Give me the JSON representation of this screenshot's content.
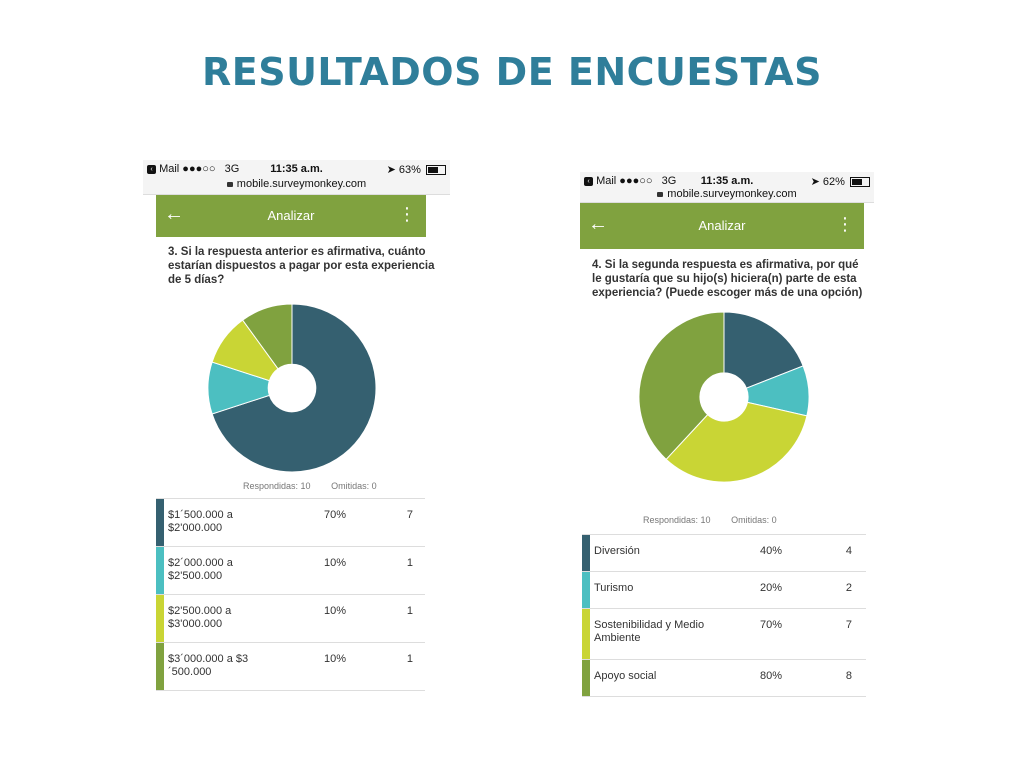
{
  "slide": {
    "title": "RESULTADOS DE ENCUESTAS"
  },
  "colors": {
    "dark": "#356070",
    "teal": "#4cbfc1",
    "lime": "#c9d535",
    "olive": "#80a23f",
    "title": "#2f7e9a"
  },
  "phones": [
    {
      "status": {
        "back": "Mail",
        "signal": "●●●○○",
        "network": "3G",
        "time": "11:35 a.m.",
        "battery": "63%",
        "battery_level": 0.63
      },
      "url": "mobile.surveymonkey.com",
      "app_bar": {
        "title": "Analizar",
        "back_icon": "arrow-left-icon",
        "menu_icon": "kebab-menu-icon"
      },
      "question": "3. Si la respuesta anterior es afirmativa, cuánto estarían dispuestos a pagar por esta experiencia de 5 días?",
      "respondidas": "Respondidas: 10",
      "omitidas": "Omitidas: 0",
      "rows": [
        {
          "label_l1": "$1´500.000 a",
          "label_l2": "$2'000.000",
          "percent": "70%",
          "count": "7",
          "color": "#356070"
        },
        {
          "label_l1": "$2´000.000 a",
          "label_l2": "$2'500.000",
          "percent": "10%",
          "count": "1",
          "color": "#4cbfc1"
        },
        {
          "label_l1": "$2'500.000 a",
          "label_l2": "$3'000.000",
          "percent": "10%",
          "count": "1",
          "color": "#c9d535"
        },
        {
          "label_l1": "$3´000.000 a $3",
          "label_l2": "´500.000",
          "percent": "10%",
          "count": "1",
          "color": "#80a23f"
        }
      ]
    },
    {
      "status": {
        "back": "Mail",
        "signal": "●●●○○",
        "network": "3G",
        "time": "11:35 a.m.",
        "battery": "62%",
        "battery_level": 0.62
      },
      "url": "mobile.surveymonkey.com",
      "app_bar": {
        "title": "Analizar",
        "back_icon": "arrow-left-icon",
        "menu_icon": "kebab-menu-icon"
      },
      "question": "4. Si la segunda respuesta es afirmativa, por qué le gustaría que su hijo(s) hiciera(n) parte de esta experiencia? (Puede escoger más de una opción)",
      "respondidas": "Respondidas: 10",
      "omitidas": "Omitidas: 0",
      "rows": [
        {
          "label_l1": "Diversión",
          "label_l2": "",
          "percent": "40%",
          "count": "4",
          "color": "#356070"
        },
        {
          "label_l1": "Turismo",
          "label_l2": "",
          "percent": "20%",
          "count": "2",
          "color": "#4cbfc1"
        },
        {
          "label_l1": "Sostenibilidad y Medio",
          "label_l2": "Ambiente",
          "percent": "70%",
          "count": "7",
          "color": "#c9d535"
        },
        {
          "label_l1": "Apoyo social",
          "label_l2": "",
          "percent": "80%",
          "count": "8",
          "color": "#80a23f"
        }
      ]
    }
  ],
  "chart_data": [
    {
      "type": "pie",
      "categories": [
        "$1´500.000 a $2'000.000",
        "$2´000.000 a $2'500.000",
        "$2'500.000 a $3'000.000",
        "$3´000.000 a $3´500.000"
      ],
      "values": [
        7,
        1,
        1,
        1
      ],
      "colors": [
        "#356070",
        "#4cbfc1",
        "#c9d535",
        "#80a23f"
      ],
      "donut": true
    },
    {
      "type": "pie",
      "categories": [
        "Diversión",
        "Turismo",
        "Sostenibilidad y Medio Ambiente",
        "Apoyo social"
      ],
      "values": [
        4,
        2,
        7,
        8
      ],
      "colors": [
        "#356070",
        "#4cbfc1",
        "#c9d535",
        "#80a23f"
      ],
      "donut": true
    }
  ]
}
